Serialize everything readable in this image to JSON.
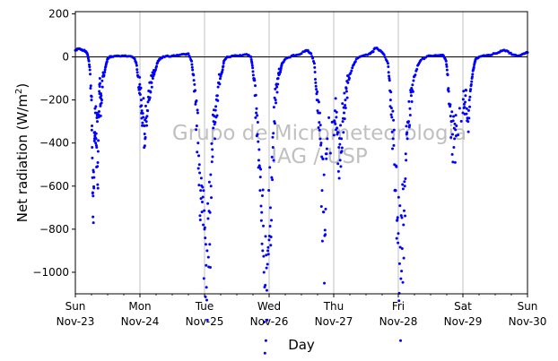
{
  "chart_data": {
    "type": "scatter",
    "title": "",
    "xlabel": "Day",
    "ylabel": "Net radiation (W/m²)",
    "ylabel_parts": {
      "base": "Net radiation (W/m",
      "sup": "2",
      "close": ")"
    },
    "xlim": [
      0,
      7
    ],
    "ylim": [
      -1100,
      210
    ],
    "yticks": [
      200,
      0,
      -200,
      -400,
      -600,
      -800,
      -1000
    ],
    "xticks": [
      {
        "x": 0,
        "day": "Sun",
        "date": "Nov-23"
      },
      {
        "x": 1,
        "day": "Mon",
        "date": "Nov-24"
      },
      {
        "x": 2,
        "day": "Tue",
        "date": "Nov-25"
      },
      {
        "x": 3,
        "day": "Wed",
        "date": "Nov-26"
      },
      {
        "x": 4,
        "day": "Thu",
        "date": "Nov-27"
      },
      {
        "x": 5,
        "day": "Fri",
        "date": "Nov-28"
      },
      {
        "x": 6,
        "day": "Sat",
        "date": "Nov-29"
      },
      {
        "x": 7,
        "day": "Sun",
        "date": "Nov-30"
      }
    ],
    "minor_ticks_per_day": 4,
    "grid": "vertical",
    "zero_line": true,
    "marker_color": "#0000ff",
    "watermark": [
      "Grupo de Micrometeorologia",
      "IAG / USP"
    ],
    "series": [
      {
        "values_by_day": [
          {
            "day": 0,
            "points": [
              [
                0.0,
                30
              ],
              [
                0.04,
                38
              ],
              [
                0.08,
                35
              ],
              [
                0.12,
                30
              ],
              [
                0.16,
                25
              ],
              [
                0.19,
                10
              ],
              [
                0.21,
                -20
              ],
              [
                0.23,
                -80
              ],
              [
                0.25,
                -200
              ],
              [
                0.26,
                -420
              ],
              [
                0.27,
                -630
              ],
              [
                0.28,
                -770
              ],
              [
                0.29,
                -560
              ],
              [
                0.3,
                -350
              ],
              [
                0.31,
                -260
              ],
              [
                0.32,
                -380
              ],
              [
                0.33,
                -420
              ],
              [
                0.34,
                -300
              ],
              [
                0.35,
                -610
              ],
              [
                0.36,
                -280
              ],
              [
                0.37,
                -160
              ],
              [
                0.38,
                -100
              ],
              [
                0.39,
                -220
              ],
              [
                0.4,
                -180
              ],
              [
                0.42,
                -140
              ],
              [
                0.44,
                -90
              ],
              [
                0.46,
                -60
              ],
              [
                0.48,
                -30
              ],
              [
                0.5,
                -10
              ],
              [
                0.52,
                -2
              ],
              [
                0.56,
                2
              ],
              [
                0.65,
                5
              ],
              [
                0.75,
                5
              ],
              [
                0.85,
                3
              ],
              [
                0.92,
                -10
              ],
              [
                0.95,
                -40
              ],
              [
                0.97,
                -90
              ],
              [
                0.99,
                -140
              ]
            ]
          },
          {
            "day": 1,
            "points": [
              [
                1.0,
                -150
              ],
              [
                1.02,
                -200
              ],
              [
                1.03,
                -250
              ],
              [
                1.05,
                -280
              ],
              [
                1.07,
                -320
              ],
              [
                1.08,
                -380
              ],
              [
                1.1,
                -300
              ],
              [
                1.12,
                -250
              ],
              [
                1.14,
                -200
              ],
              [
                1.16,
                -160
              ],
              [
                1.18,
                -120
              ],
              [
                1.2,
                -100
              ],
              [
                1.22,
                -80
              ],
              [
                1.25,
                -50
              ],
              [
                1.28,
                -20
              ],
              [
                1.32,
                -5
              ],
              [
                1.4,
                3
              ],
              [
                1.5,
                5
              ],
              [
                1.6,
                8
              ],
              [
                1.7,
                12
              ],
              [
                1.75,
                15
              ],
              [
                1.8,
                -20
              ],
              [
                1.82,
                -80
              ],
              [
                1.84,
                -160
              ],
              [
                1.86,
                -220
              ],
              [
                1.88,
                -320
              ],
              [
                1.9,
                -400
              ],
              [
                1.92,
                -500
              ],
              [
                1.94,
                -620
              ],
              [
                1.96,
                -720
              ],
              [
                1.98,
                -780
              ]
            ]
          },
          {
            "day": 2,
            "points": [
              [
                2.0,
                -800
              ],
              [
                2.02,
                -870
              ],
              [
                2.04,
                -900
              ],
              [
                2.06,
                -930
              ],
              [
                2.08,
                -870
              ],
              [
                2.1,
                -600
              ],
              [
                2.12,
                -430
              ],
              [
                2.14,
                -300
              ],
              [
                2.16,
                -380
              ],
              [
                2.18,
                -280
              ],
              [
                2.2,
                -180
              ],
              [
                2.22,
                -120
              ],
              [
                2.25,
                -90
              ],
              [
                2.28,
                -60
              ],
              [
                2.3,
                -20
              ],
              [
                2.35,
                0
              ],
              [
                2.45,
                5
              ],
              [
                2.55,
                8
              ],
              [
                2.65,
                12
              ],
              [
                2.72,
                0
              ],
              [
                2.74,
                -40
              ],
              [
                2.76,
                -100
              ],
              [
                2.78,
                -180
              ],
              [
                2.8,
                -260
              ],
              [
                2.82,
                -360
              ],
              [
                2.84,
                -480
              ],
              [
                2.86,
                -620
              ],
              [
                2.88,
                -760
              ],
              [
                2.9,
                -900
              ],
              [
                2.92,
                -1000
              ],
              [
                2.94,
                -1060
              ],
              [
                2.96,
                -980
              ],
              [
                2.98,
                -900
              ]
            ]
          },
          {
            "day": 3,
            "points": [
              [
                3.0,
                -850
              ],
              [
                3.02,
                -700
              ],
              [
                3.04,
                -560
              ],
              [
                3.06,
                -420
              ],
              [
                3.08,
                -300
              ],
              [
                3.1,
                -200
              ],
              [
                3.12,
                -140
              ],
              [
                3.14,
                -100
              ],
              [
                3.16,
                -80
              ],
              [
                3.18,
                -60
              ],
              [
                3.2,
                -30
              ],
              [
                3.25,
                -10
              ],
              [
                3.35,
                5
              ],
              [
                3.45,
                10
              ],
              [
                3.55,
                25
              ],
              [
                3.6,
                30
              ],
              [
                3.65,
                15
              ],
              [
                3.7,
                -30
              ],
              [
                3.72,
                -120
              ],
              [
                3.74,
                -200
              ],
              [
                3.76,
                -260
              ],
              [
                3.78,
                -340
              ],
              [
                3.8,
                -410
              ],
              [
                3.82,
                -620
              ],
              [
                3.84,
                -720
              ],
              [
                3.86,
                -830
              ],
              [
                3.88,
                -450
              ],
              [
                3.9,
                -380
              ]
            ]
          },
          {
            "day": 4,
            "points": [
              [
                4.0,
                -300
              ],
              [
                4.02,
                -250
              ],
              [
                4.04,
                -280
              ],
              [
                4.06,
                -350
              ],
              [
                4.08,
                -420
              ],
              [
                4.1,
                -480
              ],
              [
                4.12,
                -380
              ],
              [
                4.14,
                -300
              ],
              [
                4.16,
                -260
              ],
              [
                4.18,
                -200
              ],
              [
                4.2,
                -160
              ],
              [
                4.22,
                -120
              ],
              [
                4.25,
                -80
              ],
              [
                4.3,
                -40
              ],
              [
                4.35,
                -10
              ],
              [
                4.45,
                5
              ],
              [
                4.55,
                15
              ],
              [
                4.6,
                25
              ],
              [
                4.65,
                40
              ],
              [
                4.72,
                30
              ],
              [
                4.78,
                10
              ],
              [
                4.84,
                -30
              ],
              [
                4.86,
                -100
              ],
              [
                4.88,
                -200
              ],
              [
                4.9,
                -280
              ],
              [
                4.92,
                -380
              ],
              [
                4.94,
                -500
              ],
              [
                4.96,
                -620
              ],
              [
                4.98,
                -760
              ]
            ]
          },
          {
            "day": 5,
            "points": [
              [
                5.0,
                -820
              ],
              [
                5.02,
                -960
              ],
              [
                5.04,
                -1030
              ],
              [
                5.06,
                -890
              ],
              [
                5.08,
                -780
              ],
              [
                5.1,
                -600
              ],
              [
                5.12,
                -480
              ],
              [
                5.14,
                -380
              ],
              [
                5.16,
                -300
              ],
              [
                5.18,
                -240
              ],
              [
                5.2,
                -180
              ],
              [
                5.22,
                -130
              ],
              [
                5.25,
                -90
              ],
              [
                5.3,
                -40
              ],
              [
                5.35,
                -15
              ],
              [
                5.45,
                3
              ],
              [
                5.55,
                5
              ],
              [
                5.65,
                8
              ],
              [
                5.7,
                5
              ],
              [
                5.74,
                -20
              ],
              [
                5.76,
                -80
              ],
              [
                5.78,
                -160
              ],
              [
                5.8,
                -230
              ],
              [
                5.82,
                -300
              ],
              [
                5.84,
                -360
              ],
              [
                5.86,
                -420
              ],
              [
                5.88,
                -490
              ],
              [
                5.9,
                -320
              ]
            ]
          },
          {
            "day": 6,
            "points": [
              [
                6.0,
                -260
              ],
              [
                6.02,
                -220
              ],
              [
                6.04,
                -180
              ],
              [
                6.06,
                -240
              ],
              [
                6.08,
                -300
              ],
              [
                6.1,
                -200
              ],
              [
                6.12,
                -150
              ],
              [
                6.14,
                -100
              ],
              [
                6.16,
                -60
              ],
              [
                6.18,
                -30
              ],
              [
                6.2,
                -10
              ],
              [
                6.25,
                0
              ],
              [
                6.35,
                5
              ],
              [
                6.45,
                10
              ],
              [
                6.55,
                20
              ],
              [
                6.62,
                30
              ],
              [
                6.7,
                25
              ],
              [
                6.78,
                10
              ],
              [
                6.86,
                5
              ],
              [
                6.94,
                15
              ],
              [
                7.0,
                20
              ]
            ]
          }
        ]
      }
    ]
  }
}
